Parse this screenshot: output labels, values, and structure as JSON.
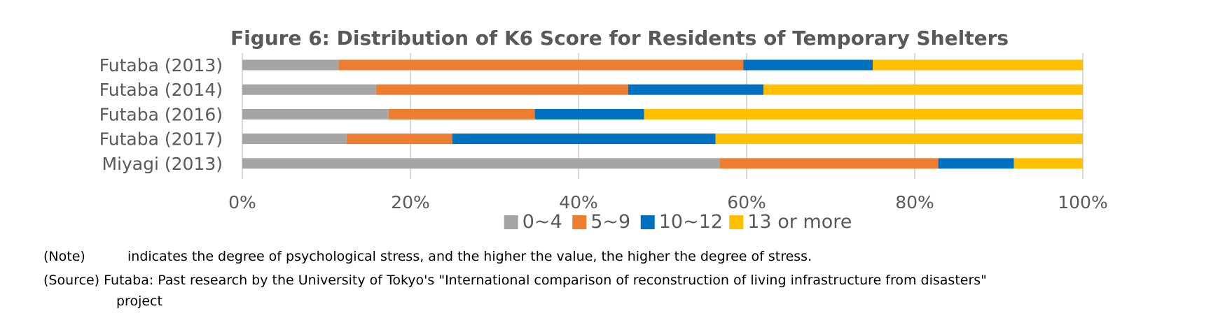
{
  "chart_data": {
    "type": "bar",
    "orientation": "horizontal",
    "stacked": "percent",
    "title": "Figure 6: Distribution of K6 Score for Residents of Temporary Shelters",
    "categories": [
      "Futaba (2013)",
      "Futaba (2014)",
      "Futaba (2016)",
      "Futaba (2017)",
      "Miyagi (2013)"
    ],
    "series": [
      {
        "name": "0~4",
        "color": "#a5a5a5",
        "values": [
          11.5,
          15.9,
          17.4,
          12.4,
          56.8
        ]
      },
      {
        "name": "5~9",
        "color": "#ed7d31",
        "values": [
          48.1,
          30.0,
          17.4,
          12.6,
          26.0
        ]
      },
      {
        "name": "10~12",
        "color": "#0070c0",
        "values": [
          15.4,
          16.1,
          13.0,
          31.3,
          9.0
        ]
      },
      {
        "name": "13 or more",
        "color": "#ffc000",
        "values": [
          25.0,
          38.0,
          52.2,
          43.7,
          8.2
        ]
      }
    ],
    "x_ticks": [
      "0%",
      "20%",
      "40%",
      "60%",
      "80%",
      "100%"
    ],
    "xlim": [
      0,
      100
    ],
    "grid": "vertical",
    "legend": "bottom"
  },
  "notes": {
    "note_label": "(Note)",
    "note_text": "indicates the degree of psychological stress, and the higher the value, the higher the degree of stress.",
    "source_label": "(Source)",
    "source_text": "Futaba: Past research by the University of Tokyo's \"International comparison of reconstruction of living infrastructure from disasters\"",
    "source_text_cont": "project"
  }
}
